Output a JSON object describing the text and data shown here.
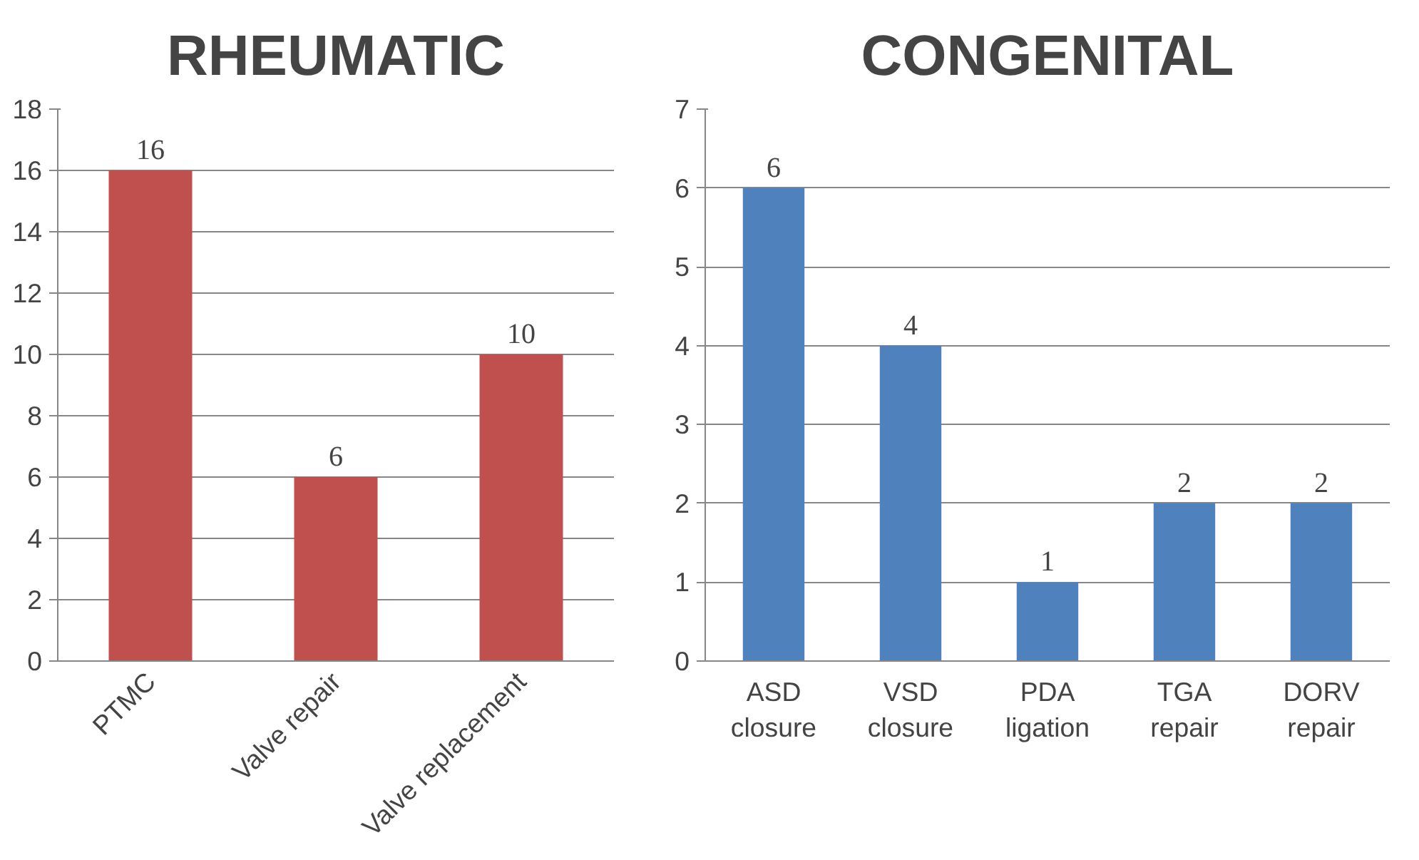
{
  "chart_data": [
    {
      "type": "bar",
      "title": "RHEUMATIC",
      "categories": [
        "PTMC",
        "Valve repair",
        "Valve replacement"
      ],
      "values": [
        16,
        6,
        10
      ],
      "color": "#c0504d",
      "ylim": [
        0,
        18
      ],
      "yticks": [
        0,
        2,
        4,
        6,
        8,
        10,
        12,
        14,
        16,
        18
      ],
      "grid": "y",
      "data_labels": true
    },
    {
      "type": "bar",
      "title": "CONGENITAL",
      "categories": [
        "ASD closure",
        "VSD closure",
        "PDA ligation",
        "TGA repair",
        "DORV repair"
      ],
      "values": [
        6,
        4,
        1,
        2,
        2
      ],
      "color": "#4f81bd",
      "ylim": [
        0,
        7
      ],
      "yticks": [
        0,
        1,
        2,
        3,
        4,
        5,
        6,
        7
      ],
      "grid": "y",
      "data_labels": true
    }
  ]
}
